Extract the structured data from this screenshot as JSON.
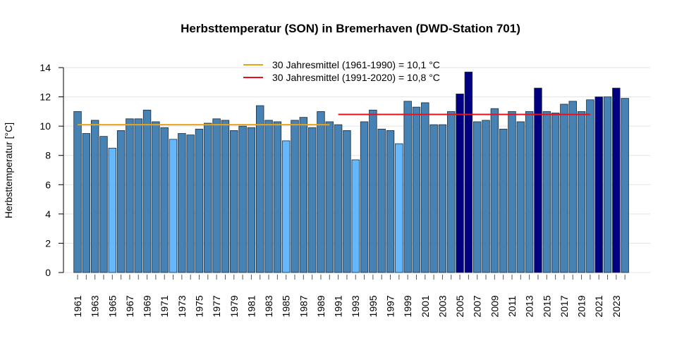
{
  "chart_data": {
    "type": "bar",
    "title": "Herbsttemperatur (SON) in Bremerhaven (DWD-Station 701)",
    "xlabel": "",
    "ylabel": "Herbsttemperatur [°C]",
    "ylim": [
      0,
      14
    ],
    "yticks": [
      "0",
      "2",
      "4",
      "6",
      "8",
      "10",
      "12",
      "14"
    ],
    "grid": true,
    "legend_position": "top-center",
    "colors": {
      "normal": "#4682b4",
      "cold": "#63b8ff",
      "warm": "#000080",
      "mean1": "#e8a317",
      "mean2": "#e8101c"
    },
    "categories": [
      1961,
      1962,
      1963,
      1964,
      1965,
      1966,
      1967,
      1968,
      1969,
      1970,
      1971,
      1972,
      1973,
      1974,
      1975,
      1976,
      1977,
      1978,
      1979,
      1980,
      1981,
      1982,
      1983,
      1984,
      1985,
      1986,
      1987,
      1988,
      1989,
      1990,
      1991,
      1992,
      1993,
      1994,
      1995,
      1996,
      1997,
      1998,
      1999,
      2000,
      2001,
      2002,
      2003,
      2004,
      2005,
      2006,
      2007,
      2008,
      2009,
      2010,
      2011,
      2012,
      2013,
      2014,
      2015,
      2016,
      2017,
      2018,
      2019,
      2020,
      2021,
      2022,
      2023,
      2024
    ],
    "values": [
      11.0,
      9.5,
      10.4,
      9.3,
      8.5,
      9.7,
      10.5,
      10.5,
      11.1,
      10.3,
      9.9,
      9.1,
      9.5,
      9.4,
      9.8,
      10.2,
      10.5,
      10.4,
      9.7,
      10.0,
      9.9,
      11.4,
      10.4,
      10.3,
      9.0,
      10.4,
      10.6,
      9.9,
      11.0,
      10.3,
      10.1,
      9.7,
      7.7,
      10.3,
      11.1,
      9.8,
      9.7,
      8.8,
      11.7,
      11.3,
      11.6,
      10.1,
      10.1,
      11.0,
      12.2,
      13.7,
      10.3,
      10.4,
      11.2,
      9.8,
      11.0,
      10.3,
      11.0,
      12.6,
      11.0,
      10.9,
      11.5,
      11.7,
      11.0,
      11.8,
      12.0,
      12.0,
      12.6,
      11.9
    ],
    "bar_class": [
      "normal",
      "normal",
      "normal",
      "normal",
      "cold",
      "normal",
      "normal",
      "normal",
      "normal",
      "normal",
      "normal",
      "cold",
      "normal",
      "normal",
      "normal",
      "normal",
      "normal",
      "normal",
      "normal",
      "normal",
      "normal",
      "normal",
      "normal",
      "normal",
      "cold",
      "normal",
      "normal",
      "normal",
      "normal",
      "normal",
      "normal",
      "normal",
      "cold",
      "normal",
      "normal",
      "normal",
      "normal",
      "cold",
      "normal",
      "normal",
      "normal",
      "normal",
      "normal",
      "normal",
      "warm",
      "warm",
      "normal",
      "normal",
      "normal",
      "normal",
      "normal",
      "normal",
      "normal",
      "warm",
      "normal",
      "normal",
      "normal",
      "normal",
      "normal",
      "normal",
      "warm",
      "normal",
      "warm",
      "normal"
    ],
    "means": [
      {
        "name": "30 Jahresmittel (1961-1990) = 10,1 °C",
        "from": 1961,
        "to": 1990,
        "value": 10.1,
        "color": "#e8a317"
      },
      {
        "name": "30 Jahresmittel (1991-2020) = 10,8 °C",
        "from": 1991,
        "to": 2020,
        "value": 10.8,
        "color": "#e8101c"
      }
    ]
  }
}
